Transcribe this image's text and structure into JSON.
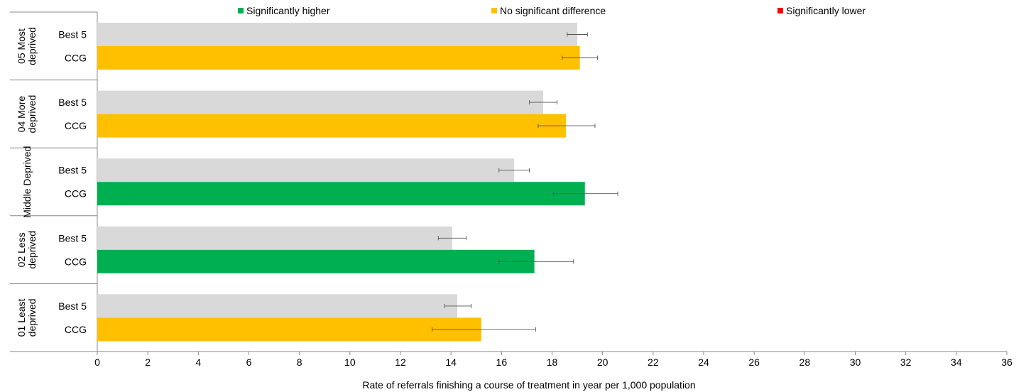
{
  "chart_data": {
    "type": "bar",
    "orientation": "horizontal",
    "title": "",
    "xlabel": "Rate of referrals finishing a course of treatment in year per 1,000 population",
    "ylabel": "",
    "xlim": [
      0,
      36
    ],
    "xticks": [
      "0",
      "2",
      "4",
      "6",
      "8",
      "10",
      "12",
      "14",
      "16",
      "18",
      "20",
      "22",
      "24",
      "26",
      "28",
      "30",
      "32",
      "34",
      "36"
    ],
    "grid": false,
    "legend_position": "top",
    "legend": [
      {
        "label": "Significantly higher",
        "color": "#00b050"
      },
      {
        "label": "No significant difference",
        "color": "#ffc000"
      },
      {
        "label": "Significantly lower",
        "color": "#ff0000"
      }
    ],
    "groups": [
      {
        "label": "05 Most deprived",
        "bars": [
          {
            "label": "Best 5",
            "value": 19.0,
            "ci": [
              18.6,
              19.4
            ],
            "color": "#d9d9d9"
          },
          {
            "label": "CCG",
            "value": 19.1,
            "ci": [
              18.4,
              19.8
            ],
            "color": "#ffc000"
          }
        ]
      },
      {
        "label": "04 More deprived",
        "bars": [
          {
            "label": "Best 5",
            "value": 17.65,
            "ci": [
              17.1,
              18.2
            ],
            "color": "#d9d9d9"
          },
          {
            "label": "CCG",
            "value": 18.55,
            "ci": [
              17.45,
              19.7
            ],
            "color": "#ffc000"
          }
        ]
      },
      {
        "label": "Middle Deprived",
        "bars": [
          {
            "label": "Best 5",
            "value": 16.5,
            "ci": [
              15.9,
              17.1
            ],
            "color": "#d9d9d9"
          },
          {
            "label": "CCG",
            "value": 19.3,
            "ci": [
              18.05,
              20.6
            ],
            "color": "#00b050"
          }
        ]
      },
      {
        "label": "02 Less deprived",
        "bars": [
          {
            "label": "Best 5",
            "value": 14.05,
            "ci": [
              13.5,
              14.6
            ],
            "color": "#d9d9d9"
          },
          {
            "label": "CCG",
            "value": 17.3,
            "ci": [
              15.9,
              18.85
            ],
            "color": "#00b050"
          }
        ]
      },
      {
        "label": "01 Least deprived",
        "bars": [
          {
            "label": "Best 5",
            "value": 14.25,
            "ci": [
              13.75,
              14.8
            ],
            "color": "#d9d9d9"
          },
          {
            "label": "CCG",
            "value": 15.2,
            "ci": [
              13.25,
              17.35
            ],
            "color": "#ffc000"
          }
        ]
      }
    ]
  }
}
